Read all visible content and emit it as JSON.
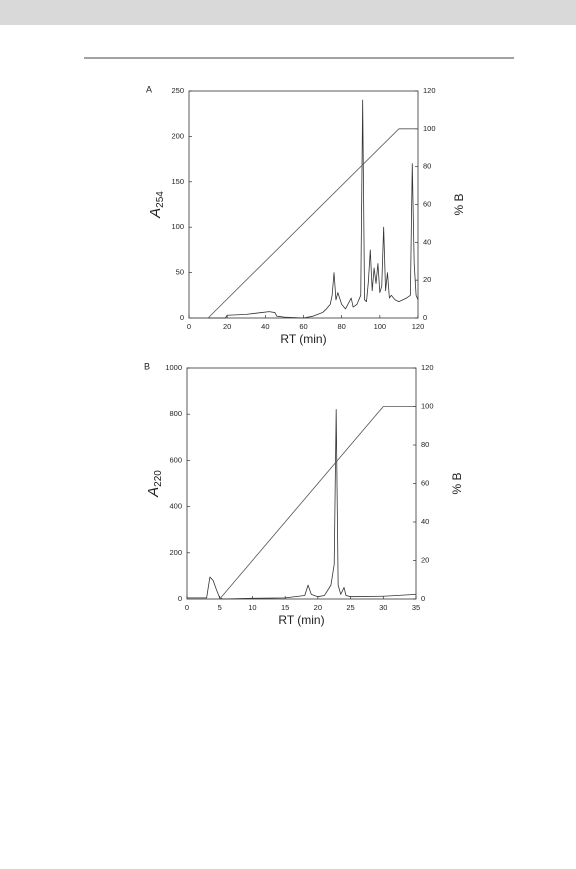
{
  "chart_data": [
    {
      "type": "line",
      "panel": "A",
      "ylabel": "A",
      "ylabel_subscript": "254",
      "y2label": "% B",
      "xlabel": "RT (min)",
      "xlim": [
        0,
        120
      ],
      "xticks": [
        0,
        20,
        40,
        60,
        80,
        100,
        120
      ],
      "ylim": [
        0,
        250
      ],
      "yticks": [
        0,
        50,
        100,
        150,
        200,
        250
      ],
      "y2lim": [
        0,
        120
      ],
      "y2ticks": [
        0,
        20,
        40,
        60,
        80,
        100,
        120
      ],
      "series": [
        {
          "color": "#333333",
          "x": [
            0,
            10,
            18,
            19,
            20,
            30,
            38,
            42,
            45,
            46,
            50,
            60,
            65,
            70,
            72,
            74,
            75,
            76,
            77,
            78,
            80,
            82,
            84,
            85,
            86,
            88,
            90,
            91,
            92,
            93,
            94,
            95,
            96,
            97,
            98,
            99,
            100,
            101,
            102,
            103,
            104,
            105,
            106,
            108,
            110,
            112,
            114,
            116,
            117,
            118,
            119,
            120
          ],
          "values": [
            0,
            0,
            0,
            0,
            3,
            4,
            6,
            7,
            6,
            2,
            1,
            0,
            2,
            6,
            10,
            15,
            25,
            50,
            20,
            28,
            15,
            10,
            18,
            22,
            12,
            15,
            25,
            240,
            20,
            18,
            40,
            75,
            30,
            55,
            38,
            60,
            28,
            35,
            100,
            30,
            50,
            22,
            25,
            20,
            18,
            20,
            22,
            25,
            170,
            60,
            25,
            20
          ]
        },
        {
          "color": "#555555",
          "axis": "y2",
          "x": [
            0,
            10,
            110,
            120
          ],
          "values": [
            0,
            0,
            100,
            100
          ]
        }
      ]
    },
    {
      "type": "line",
      "panel": "B",
      "ylabel": "A",
      "ylabel_subscript": "220",
      "y2label": "% B",
      "xlabel": "RT (min)",
      "xlim": [
        0,
        35
      ],
      "xticks": [
        0,
        5,
        10,
        15,
        20,
        25,
        30,
        35
      ],
      "ylim": [
        0,
        1000
      ],
      "yticks": [
        0,
        200,
        400,
        600,
        800,
        1000
      ],
      "y2lim": [
        0,
        120
      ],
      "y2ticks": [
        0,
        20,
        40,
        60,
        80,
        100,
        120
      ],
      "series": [
        {
          "color": "#333333",
          "x": [
            0,
            3,
            3.5,
            4,
            4.5,
            5,
            5.5,
            10,
            15,
            18,
            18.5,
            19,
            20,
            21,
            22,
            22.5,
            22.8,
            23.1,
            23.5,
            24,
            24.3,
            25,
            30,
            35
          ],
          "values": [
            5,
            5,
            95,
            80,
            40,
            5,
            0,
            3,
            5,
            15,
            60,
            20,
            10,
            15,
            60,
            150,
            820,
            60,
            20,
            50,
            15,
            10,
            12,
            20
          ]
        },
        {
          "color": "#555555",
          "axis": "y2",
          "x": [
            0,
            5,
            30,
            35
          ],
          "values": [
            0,
            0,
            100,
            100
          ]
        }
      ]
    }
  ]
}
